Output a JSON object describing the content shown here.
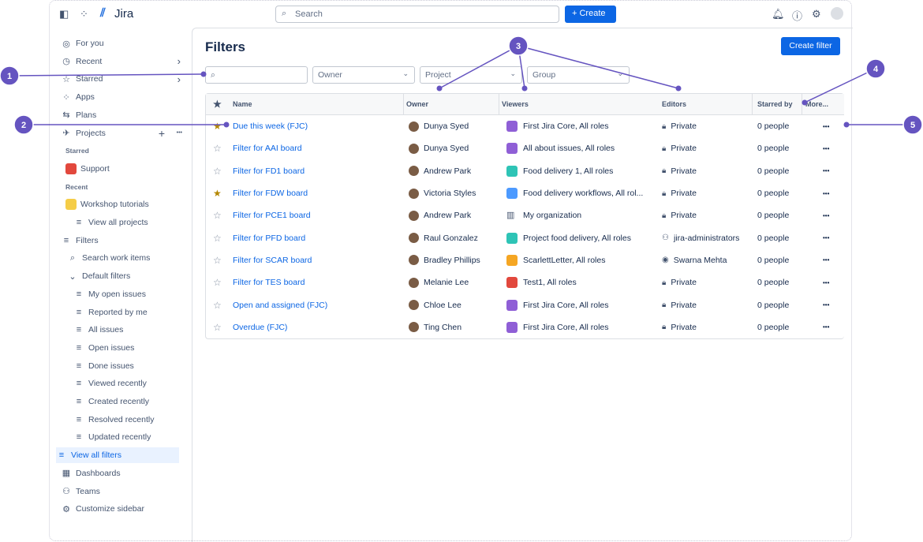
{
  "app": {
    "name": "Jira",
    "search_placeholder": "Search",
    "create_label": "Create",
    "icons": [
      "sidebar-toggle-icon",
      "app-switcher-icon",
      "bell-icon",
      "help-icon",
      "gear-icon",
      "avatar-icon"
    ]
  },
  "sidebar": {
    "items": [
      {
        "label": "For you",
        "icon": "◎"
      },
      {
        "label": "Recent",
        "icon": "◷",
        "chev": true
      },
      {
        "label": "Starred",
        "icon": "☆",
        "chev": true
      },
      {
        "label": "Apps",
        "icon": "⁘"
      },
      {
        "label": "Plans",
        "icon": "⇆"
      },
      {
        "label": "Projects",
        "icon": "✈",
        "actions": true
      }
    ],
    "starred_label": "Starred",
    "starred_projects": [
      {
        "label": "Support",
        "color": "#e2483d"
      }
    ],
    "recent_label": "Recent",
    "recent_projects": [
      {
        "label": "Workshop tutorials",
        "color": "#f5cd47"
      }
    ],
    "view_all_projects": "View all projects",
    "filters": "Filters",
    "search_work_items": "Search work items",
    "default_filters": "Default filters",
    "default_items": [
      "My open issues",
      "Reported by me",
      "All issues",
      "Open issues",
      "Done issues",
      "Viewed recently",
      "Created recently",
      "Resolved recently",
      "Updated recently"
    ],
    "view_all_filters": "View all filters",
    "bottom": [
      "Dashboards",
      "Teams",
      "Customize sidebar"
    ]
  },
  "main": {
    "title": "Filters",
    "create_filter": "Create filter",
    "filters": {
      "owner": "Owner",
      "project": "Project",
      "group": "Group"
    },
    "columns": [
      "Name",
      "Owner",
      "Viewers",
      "Editors",
      "Starred by",
      "More..."
    ],
    "rows": [
      {
        "starred": true,
        "name": "Due this week (FJC)",
        "owner": "Dunya Syed",
        "viewers": "First Jira Core, All roles",
        "vcolor": "#8f5fd6",
        "editors": "Private",
        "eicon": "lock",
        "starred_by": "0 people"
      },
      {
        "starred": false,
        "name": "Filter for AAI board",
        "owner": "Dunya Syed",
        "viewers": "All about issues, All roles",
        "vcolor": "#8f5fd6",
        "editors": "Private",
        "eicon": "lock",
        "starred_by": "0 people"
      },
      {
        "starred": false,
        "name": "Filter for FD1 board",
        "owner": "Andrew Park",
        "viewers": "Food delivery 1, All roles",
        "vcolor": "#2ec4b6",
        "editors": "Private",
        "eicon": "lock",
        "starred_by": "0 people"
      },
      {
        "starred": true,
        "name": "Filter for FDW board",
        "owner": "Victoria Styles",
        "viewers": "Food delivery workflows, All rol...",
        "vcolor": "#4c9aff",
        "editors": "Private",
        "eicon": "lock",
        "starred_by": "0 people"
      },
      {
        "starred": false,
        "name": "Filter for PCE1 board",
        "owner": "Andrew Park",
        "viewers": "My organization",
        "vcolor": "",
        "editors": "Private",
        "eicon": "lock",
        "starred_by": "0 people"
      },
      {
        "starred": false,
        "name": "Filter for PFD board",
        "owner": "Raul Gonzalez",
        "viewers": "Project food delivery, All roles",
        "vcolor": "#2ec4b6",
        "editors": "jira-administrators",
        "eicon": "group",
        "starred_by": "0 people"
      },
      {
        "starred": false,
        "name": "Filter for SCAR board",
        "owner": "Bradley Phillips",
        "viewers": "ScarlettLetter, All roles",
        "vcolor": "#f5a623",
        "editors": "Swarna Mehta",
        "eicon": "user",
        "starred_by": "0 people"
      },
      {
        "starred": false,
        "name": "Filter for TES board",
        "owner": "Melanie Lee",
        "viewers": "Test1, All roles",
        "vcolor": "#e2483d",
        "editors": "Private",
        "eicon": "lock",
        "starred_by": "0 people"
      },
      {
        "starred": false,
        "name": "Open and assigned (FJC)",
        "owner": "Chloe Lee",
        "viewers": "First Jira Core, All roles",
        "vcolor": "#8f5fd6",
        "editors": "Private",
        "eicon": "lock",
        "starred_by": "0 people"
      },
      {
        "starred": false,
        "name": "Overdue (FJC)",
        "owner": "Ting Chen",
        "viewers": "First Jira Core, All roles",
        "vcolor": "#8f5fd6",
        "editors": "Private",
        "eicon": "lock",
        "starred_by": "0 people"
      }
    ]
  },
  "callouts": [
    "1",
    "2",
    "3",
    "4",
    "5"
  ],
  "colors": {
    "accent": "#0c66e4",
    "callout": "#6554c0"
  }
}
